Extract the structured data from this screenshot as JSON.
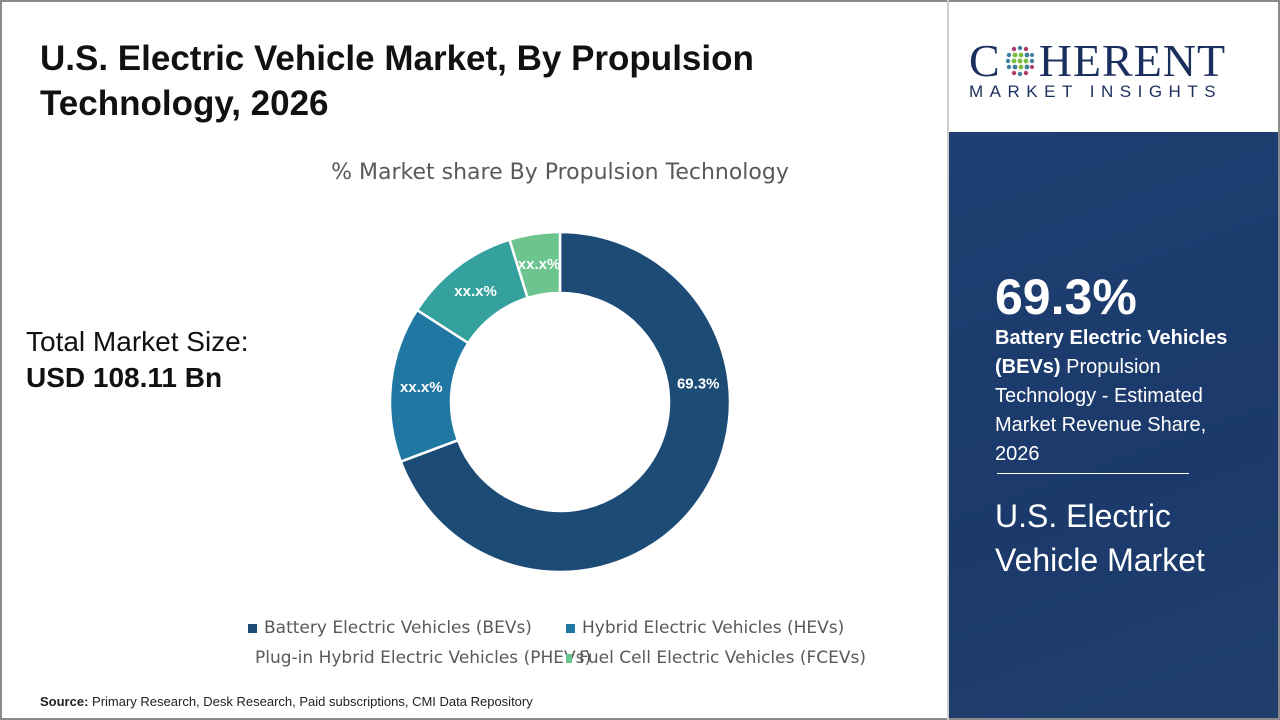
{
  "title": "U.S. Electric Vehicle Market, By Propulsion Technology, 2026",
  "total_market": {
    "label": "Total Market Size:",
    "value": "USD 108.11 Bn"
  },
  "source": {
    "label": "Source:",
    "text": "Primary Research, Desk Research, Paid subscriptions, CMI Data Repository"
  },
  "logo": {
    "name_left": "C",
    "name_right": "HERENT",
    "tagline": "MARKET INSIGHTS"
  },
  "panel": {
    "percent": "69.3%",
    "desc_bold": "Battery Electric Vehicles (BEVs)",
    "desc_rest": " Propulsion Technology - Estimated Market Revenue Share, 2026",
    "market": "U.S. Electric Vehicle Market"
  },
  "chart_data": {
    "type": "pie",
    "donut": true,
    "title": "% Market share By Propulsion Technology",
    "categories": [
      "Battery Electric Vehicles (BEVs)",
      "Hybrid Electric Vehicles (HEVs)",
      "Plug-in Hybrid Electric Vehicles (PHEVs)",
      "Fuel Cell Electric Vehicles (FCEVs)"
    ],
    "values": [
      69.3,
      14.8,
      11.1,
      4.8
    ],
    "data_labels": [
      "69.3%",
      "xx.x%",
      "xx.x%",
      "xx.x%"
    ],
    "colors": [
      "#1c4b75",
      "#1f77a2",
      "#35a19e",
      "#6cc48f"
    ],
    "legend": "bottom"
  }
}
